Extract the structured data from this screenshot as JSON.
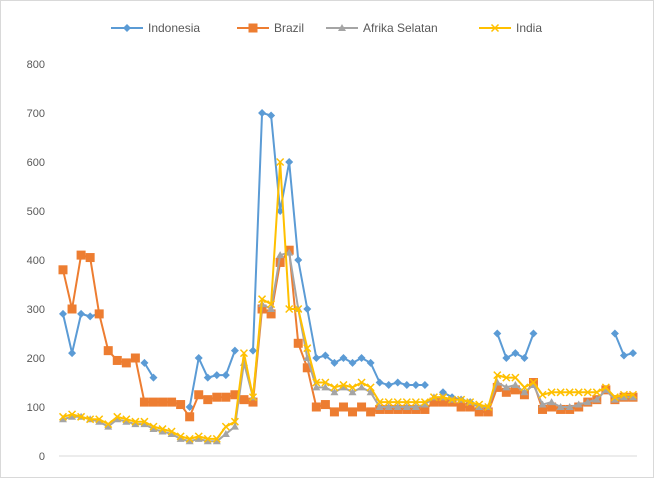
{
  "chart_data": {
    "type": "line",
    "title": "",
    "xlabel": "",
    "ylabel": "",
    "ylim": [
      0,
      800
    ],
    "yticks": [
      "0",
      "100",
      "200",
      "300",
      "400",
      "500",
      "600",
      "700",
      "800"
    ],
    "grid": false,
    "legend_position": "top",
    "series": [
      {
        "name": "Indonesia",
        "color": "#5B9BD5",
        "marker": "diamond",
        "values": [
          290,
          210,
          290,
          285,
          290,
          null,
          null,
          null,
          null,
          190,
          160,
          null,
          null,
          null,
          100,
          200,
          160,
          165,
          165,
          215,
          null,
          215,
          700,
          695,
          500,
          600,
          400,
          300,
          200,
          205,
          190,
          200,
          190,
          200,
          190,
          150,
          145,
          150,
          145,
          145,
          145,
          null,
          130,
          120,
          115,
          110,
          100,
          null,
          250,
          200,
          210,
          200,
          250,
          null,
          null,
          null,
          null,
          null,
          null,
          null,
          null,
          250,
          205,
          210
        ]
      },
      {
        "name": "Brazil",
        "color": "#ED7D31",
        "marker": "square",
        "values": [
          380,
          300,
          410,
          405,
          290,
          215,
          195,
          190,
          200,
          110,
          110,
          110,
          110,
          105,
          80,
          125,
          115,
          120,
          120,
          125,
          115,
          110,
          300,
          290,
          395,
          420,
          230,
          180,
          100,
          105,
          90,
          100,
          90,
          100,
          90,
          95,
          95,
          95,
          95,
          95,
          95,
          110,
          110,
          110,
          100,
          100,
          90,
          90,
          140,
          130,
          135,
          125,
          150,
          95,
          100,
          95,
          95,
          100,
          110,
          115,
          135,
          115,
          120,
          120
        ]
      },
      {
        "name": "Afrika Selatan",
        "color": "#A5A5A5",
        "marker": "triangle",
        "values": [
          75,
          80,
          80,
          75,
          70,
          60,
          75,
          70,
          65,
          65,
          55,
          50,
          45,
          35,
          30,
          35,
          30,
          30,
          45,
          60,
          190,
          120,
          310,
          300,
          410,
          415,
          300,
          200,
          140,
          140,
          130,
          140,
          130,
          140,
          130,
          100,
          100,
          100,
          100,
          100,
          105,
          120,
          120,
          115,
          115,
          110,
          100,
          100,
          150,
          140,
          145,
          130,
          145,
          105,
          110,
          100,
          100,
          105,
          110,
          115,
          135,
          115,
          120,
          120
        ]
      },
      {
        "name": "India",
        "color": "#FFC000",
        "marker": "cross",
        "values": [
          80,
          85,
          80,
          75,
          75,
          65,
          80,
          75,
          70,
          70,
          60,
          55,
          50,
          40,
          35,
          40,
          35,
          35,
          60,
          70,
          210,
          120,
          320,
          310,
          600,
          300,
          300,
          220,
          150,
          150,
          140,
          145,
          140,
          150,
          140,
          110,
          110,
          110,
          110,
          110,
          110,
          120,
          120,
          115,
          115,
          110,
          105,
          100,
          165,
          160,
          160,
          140,
          150,
          125,
          130,
          130,
          130,
          130,
          130,
          130,
          140,
          120,
          125,
          125
        ]
      }
    ]
  }
}
